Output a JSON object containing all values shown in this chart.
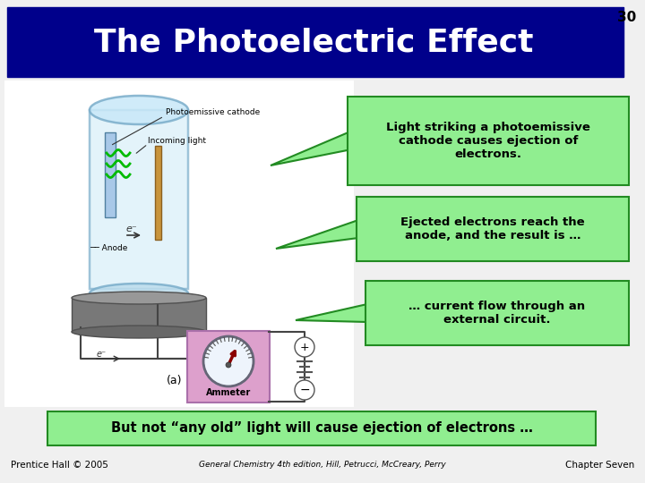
{
  "title": "The Photoelectric Effect",
  "slide_number": "30",
  "title_bg": "#00008B",
  "title_text_color": "#FFFFFF",
  "title_fontsize": 26,
  "callout1_text": "Light striking a photoemissive\ncathode causes ejection of\nelectrons.",
  "callout2_text": "Ejected electrons reach the\nanode, and the result is …",
  "callout3_text": "… current flow through an\nexternal circuit.",
  "callout_bg": "#90EE90",
  "callout_border": "#228B22",
  "callout_text_color": "#000000",
  "bottom_box_text": "But not “any old” light will cause ejection of electrons …",
  "bottom_box_bg": "#90EE90",
  "bottom_box_border": "#228B22",
  "footer_left": "Prentice Hall © 2005",
  "footer_center": "General Chemistry 4th edition, Hill, Petrucci, McCreary, Perry",
  "footer_right": "Chapter Seven",
  "bg_color": "#F0F0F0"
}
